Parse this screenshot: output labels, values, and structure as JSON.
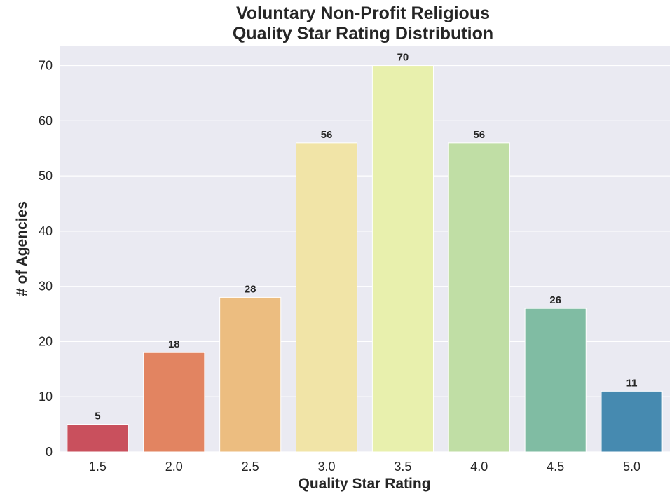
{
  "chart_data": {
    "type": "bar",
    "title_lines": [
      "Voluntary Non-Profit Religious",
      "Quality Star Rating Distribution"
    ],
    "xlabel": "Quality Star Rating",
    "ylabel": "# of Agencies",
    "categories": [
      "1.5",
      "2.0",
      "2.5",
      "3.0",
      "3.5",
      "4.0",
      "4.5",
      "5.0"
    ],
    "values": [
      5,
      18,
      28,
      56,
      70,
      56,
      26,
      11
    ],
    "data_labels": [
      "5",
      "18",
      "28",
      "56",
      "70",
      "56",
      "26",
      "11"
    ],
    "colors": [
      "#c9505d",
      "#e28461",
      "#ecbd80",
      "#f1e4a7",
      "#e8f0ad",
      "#c0dea5",
      "#80bca3",
      "#468ab0"
    ],
    "yticks": [
      0,
      10,
      20,
      30,
      40,
      50,
      60,
      70
    ],
    "ylim": [
      0,
      73.5
    ],
    "grid": true,
    "background_color": "#eaeaf2",
    "legend": "none"
  }
}
